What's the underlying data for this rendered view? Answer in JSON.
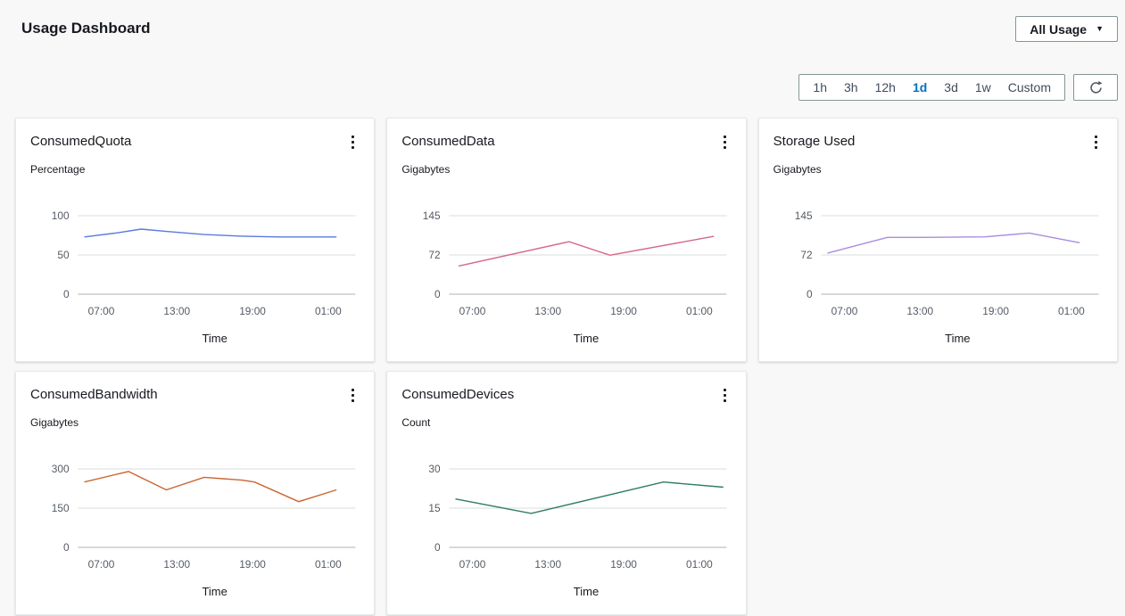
{
  "header": {
    "title": "Usage Dashboard",
    "usage_filter_label": "All Usage"
  },
  "toolbar": {
    "ranges": [
      "1h",
      "3h",
      "12h",
      "1d",
      "3d",
      "1w",
      "Custom"
    ],
    "selected_range": "1d",
    "selected_color": "#0073bb"
  },
  "chart_data": [
    {
      "type": "line",
      "title": "ConsumedQuota",
      "ylabel": "Percentage",
      "xlabel": "Time",
      "ylim": [
        0,
        100
      ],
      "y_ticks": [
        100,
        50,
        0
      ],
      "x_ticks": [
        "07:00",
        "13:00",
        "19:00",
        "01:00"
      ],
      "grid": true,
      "legend": false,
      "color": "#5b79de",
      "points": [
        [
          "06:30",
          73
        ],
        [
          "09:00",
          78
        ],
        [
          "11:00",
          83
        ],
        [
          "13:00",
          80
        ],
        [
          "16:00",
          76
        ],
        [
          "19:00",
          74
        ],
        [
          "22:00",
          73
        ],
        [
          "01:00",
          73
        ],
        [
          "02:30",
          73
        ]
      ]
    },
    {
      "type": "line",
      "title": "ConsumedData",
      "ylabel": "Gigabytes",
      "xlabel": "Time",
      "ylim": [
        0,
        145
      ],
      "y_ticks": [
        145,
        72,
        0
      ],
      "x_ticks": [
        "07:00",
        "13:00",
        "19:00",
        "01:00"
      ],
      "grid": true,
      "legend": false,
      "color": "#d46884",
      "points": [
        [
          "06:45",
          52
        ],
        [
          "15:30",
          97
        ],
        [
          "18:45",
          72
        ],
        [
          "03:00",
          107
        ]
      ]
    },
    {
      "type": "line",
      "title": "Storage Used",
      "ylabel": "Gigabytes",
      "xlabel": "Time",
      "ylim": [
        0,
        145
      ],
      "y_ticks": [
        145,
        72,
        0
      ],
      "x_ticks": [
        "07:00",
        "13:00",
        "19:00",
        "01:00"
      ],
      "grid": true,
      "legend": false,
      "color": "#aa8be0",
      "points": [
        [
          "06:30",
          76
        ],
        [
          "11:15",
          105
        ],
        [
          "14:00",
          105
        ],
        [
          "19:00",
          106
        ],
        [
          "22:30",
          113
        ],
        [
          "02:30",
          95
        ]
      ]
    },
    {
      "type": "line",
      "title": "ConsumedBandwidth",
      "ylabel": "Gigabytes",
      "xlabel": "Time",
      "ylim": [
        0,
        300
      ],
      "y_ticks": [
        300,
        150,
        0
      ],
      "x_ticks": [
        "07:00",
        "13:00",
        "19:00",
        "01:00"
      ],
      "grid": true,
      "legend": false,
      "color": "#cb6531",
      "points": [
        [
          "06:30",
          250
        ],
        [
          "10:00",
          290
        ],
        [
          "13:00",
          220
        ],
        [
          "16:00",
          268
        ],
        [
          "19:00",
          257
        ],
        [
          "20:00",
          250
        ],
        [
          "23:30",
          175
        ],
        [
          "02:30",
          220
        ]
      ]
    },
    {
      "type": "line",
      "title": "ConsumedDevices",
      "ylabel": "Count",
      "xlabel": "Time",
      "ylim": [
        0,
        30
      ],
      "y_ticks": [
        30,
        15,
        0
      ],
      "x_ticks": [
        "07:00",
        "13:00",
        "19:00",
        "01:00"
      ],
      "grid": true,
      "legend": false,
      "color": "#2e7d64",
      "points": [
        [
          "06:30",
          18.5
        ],
        [
          "12:30",
          13
        ],
        [
          "23:00",
          25
        ],
        [
          "03:45",
          23
        ]
      ]
    }
  ]
}
